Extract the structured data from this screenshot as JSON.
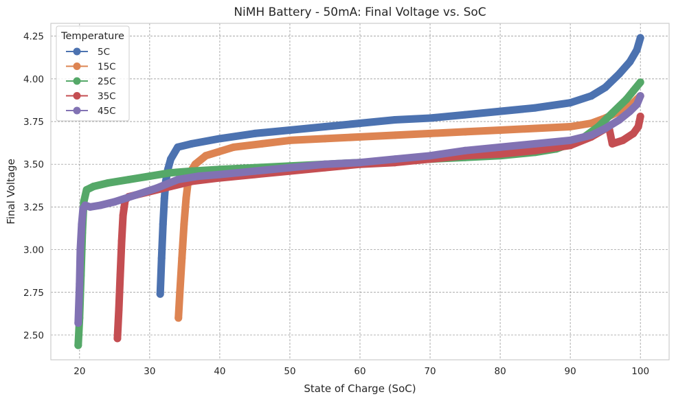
{
  "chart_data": {
    "type": "line",
    "title": "NiMH Battery - 50mA: Final Voltage vs. SoC",
    "xlabel": "State of Charge (SoC)",
    "ylabel": "Final Voltage",
    "xlim": [
      15.9,
      104.1
    ],
    "ylim": [
      2.355,
      4.325
    ],
    "x_ticks": [
      "20",
      "30",
      "40",
      "50",
      "60",
      "70",
      "80",
      "90",
      "100"
    ],
    "y_ticks": [
      "2.50",
      "2.75",
      "3.00",
      "3.25",
      "3.50",
      "3.75",
      "4.00",
      "4.25"
    ],
    "x_tick_values": [
      20,
      30,
      40,
      50,
      60,
      70,
      80,
      90,
      100
    ],
    "y_tick_values": [
      2.5,
      2.75,
      3.0,
      3.25,
      3.5,
      3.75,
      4.0,
      4.25
    ],
    "grid": true,
    "legend": {
      "title": "Temperature",
      "position": "top-left"
    },
    "series": [
      {
        "name": "5C",
        "color": "#4c72b0",
        "x": [
          31.5,
          31.7,
          31.9,
          32.1,
          32.3,
          32.6,
          33.0,
          34.0,
          36.0,
          40.0,
          45.0,
          50.0,
          55.0,
          60.0,
          65.0,
          70.0,
          75.0,
          80.0,
          85.0,
          90.0,
          93.0,
          95.0,
          97.0,
          98.5,
          99.5,
          100.0
        ],
        "y": [
          2.74,
          2.95,
          3.15,
          3.3,
          3.4,
          3.47,
          3.53,
          3.6,
          3.62,
          3.65,
          3.68,
          3.7,
          3.72,
          3.74,
          3.76,
          3.77,
          3.79,
          3.81,
          3.83,
          3.86,
          3.9,
          3.95,
          4.03,
          4.1,
          4.17,
          4.24
        ]
      },
      {
        "name": "15C",
        "color": "#dd8452",
        "x": [
          34.1,
          34.3,
          34.6,
          34.9,
          35.2,
          35.6,
          36.5,
          38.0,
          42.0,
          46.0,
          50.0,
          55.0,
          60.0,
          65.0,
          70.0,
          75.0,
          80.0,
          85.0,
          90.0,
          93.0,
          95.0,
          97.0,
          98.5,
          99.5,
          100.0
        ],
        "y": [
          2.6,
          2.75,
          2.95,
          3.15,
          3.3,
          3.44,
          3.5,
          3.55,
          3.6,
          3.62,
          3.64,
          3.65,
          3.66,
          3.67,
          3.68,
          3.69,
          3.7,
          3.71,
          3.72,
          3.74,
          3.77,
          3.81,
          3.84,
          3.88,
          3.9
        ]
      },
      {
        "name": "25C",
        "color": "#55a868",
        "x": [
          19.8,
          20.0,
          20.2,
          20.4,
          20.6,
          21.0,
          22.0,
          24.0,
          27.0,
          30.0,
          33.0,
          36.0,
          40.0,
          45.0,
          50.0,
          55.0,
          60.0,
          65.0,
          70.0,
          75.0,
          80.0,
          85.0,
          88.0,
          90.0,
          92.0,
          94.0,
          96.0,
          98.0,
          99.0,
          100.0
        ],
        "y": [
          2.44,
          2.6,
          2.85,
          3.1,
          3.28,
          3.35,
          3.37,
          3.39,
          3.41,
          3.43,
          3.45,
          3.46,
          3.47,
          3.48,
          3.49,
          3.5,
          3.51,
          3.52,
          3.53,
          3.54,
          3.55,
          3.57,
          3.59,
          3.62,
          3.66,
          3.72,
          3.8,
          3.88,
          3.93,
          3.98
        ]
      },
      {
        "name": "35C",
        "color": "#c44e52",
        "x": [
          25.4,
          25.6,
          25.8,
          26.0,
          26.2,
          26.5,
          27.0,
          28.0,
          30.0,
          33.0,
          36.0,
          40.0,
          45.0,
          50.0,
          55.0,
          60.0,
          65.0,
          70.0,
          75.0,
          80.0,
          85.0,
          90.0,
          93.0,
          95.5,
          96.0,
          97.5,
          99.0,
          99.7,
          100.0
        ],
        "y": [
          2.48,
          2.65,
          2.85,
          3.05,
          3.2,
          3.29,
          3.31,
          3.32,
          3.34,
          3.37,
          3.4,
          3.42,
          3.44,
          3.46,
          3.48,
          3.5,
          3.51,
          3.53,
          3.55,
          3.56,
          3.58,
          3.61,
          3.66,
          3.72,
          3.62,
          3.64,
          3.68,
          3.72,
          3.78
        ]
      },
      {
        "name": "45C",
        "color": "#8172b3",
        "x": [
          19.8,
          20.0,
          20.1,
          20.3,
          20.5,
          20.8,
          21.5,
          23.0,
          25.0,
          28.0,
          31.0,
          34.0,
          37.0,
          40.0,
          45.0,
          50.0,
          55.0,
          60.0,
          65.0,
          70.0,
          75.0,
          80.0,
          85.0,
          90.0,
          93.0,
          95.0,
          97.0,
          98.5,
          99.5,
          100.0
        ],
        "y": [
          2.57,
          2.8,
          3.0,
          3.15,
          3.24,
          3.26,
          3.25,
          3.26,
          3.28,
          3.32,
          3.36,
          3.41,
          3.43,
          3.44,
          3.46,
          3.48,
          3.5,
          3.51,
          3.53,
          3.55,
          3.58,
          3.6,
          3.62,
          3.64,
          3.67,
          3.71,
          3.76,
          3.81,
          3.85,
          3.9
        ]
      }
    ]
  }
}
